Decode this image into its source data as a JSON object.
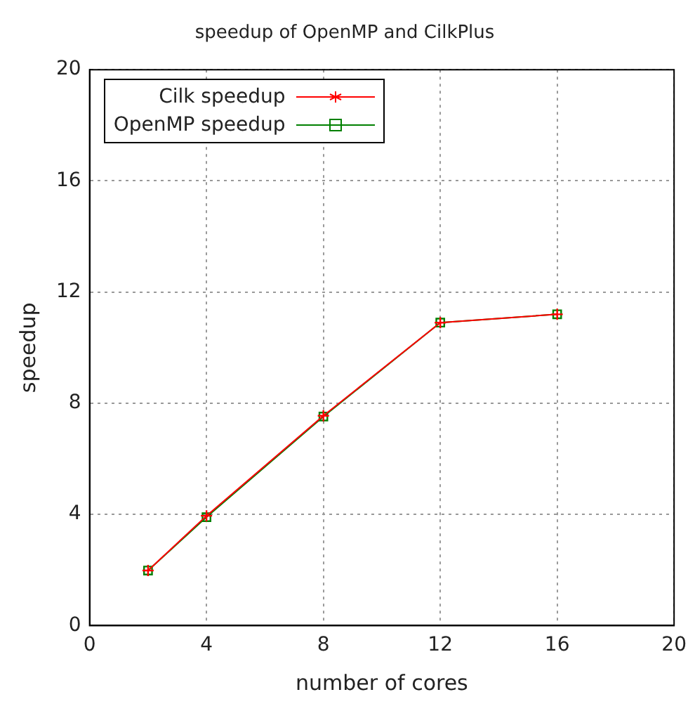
{
  "chart_data": {
    "type": "line",
    "title": "speedup of OpenMP and CilkPlus",
    "xlabel": "number of cores",
    "ylabel": "speedup",
    "x": [
      2,
      4,
      8,
      12,
      16
    ],
    "series": [
      {
        "name": "Cilk speedup",
        "color": "#ff0000",
        "values": [
          1.98,
          3.95,
          7.55,
          10.9,
          11.2
        ],
        "marker": "cross"
      },
      {
        "name": "OpenMP speedup",
        "color": "#008000",
        "values": [
          1.98,
          3.9,
          7.52,
          10.9,
          11.2
        ],
        "marker": "square"
      }
    ],
    "xlim": [
      0,
      20
    ],
    "xticks": [
      0,
      4,
      8,
      12,
      16,
      20
    ],
    "ylim": [
      0,
      20
    ],
    "yticks": [
      0,
      4,
      8,
      12,
      16,
      20
    ],
    "grid": true,
    "legend": "top left",
    "line_style": "solid"
  }
}
